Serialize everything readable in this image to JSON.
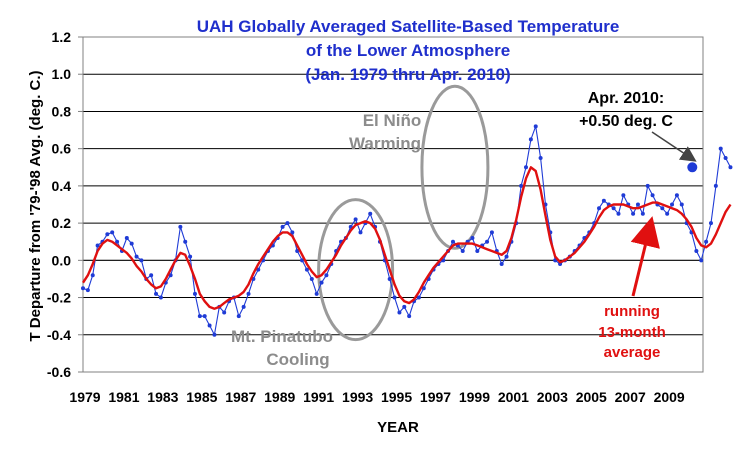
{
  "colors": {
    "title": "#1f2fcc",
    "monthly_series": "#1f3bd6",
    "running_mean": "#e01010",
    "annotation_gray": "#8c8c8c",
    "annotation_red": "#e01010",
    "background": "#ffffff",
    "grid": "#000000"
  },
  "chart_data": {
    "type": "line",
    "title": [
      "UAH Globally Averaged Satellite-Based Temperature",
      "of the Lower Atmosphere",
      "(Jan. 1979  thru Apr. 2010)"
    ],
    "xlabel": "YEAR",
    "ylabel": "T Departure from '79-'98 Avg. (deg. C.)",
    "xlim": [
      1979.0,
      2010.84
    ],
    "ylim": [
      -0.6,
      1.2
    ],
    "x_tick_labels": [
      "1979",
      "1981",
      "1983",
      "1985",
      "1987",
      "1989",
      "1991",
      "1993",
      "1995",
      "1997",
      "1999",
      "2001",
      "2003",
      "2005",
      "2007",
      "2009"
    ],
    "y_tick_labels": [
      "1.2",
      "1.0",
      "0.8",
      "0.6",
      "0.4",
      "0.2",
      "0.0",
      "-0.2",
      "-0.4",
      "-0.6"
    ],
    "y_ticks": [
      1.2,
      1.0,
      0.8,
      0.6,
      0.4,
      0.2,
      0.0,
      -0.2,
      -0.4,
      -0.6
    ],
    "horizontal_grid": true,
    "series": [
      {
        "style": "blue line with dot markers (monthly values, approximate)",
        "x_start": 1979.0,
        "x_step": 0.25,
        "values": [
          -0.15,
          -0.16,
          -0.08,
          0.08,
          0.1,
          0.14,
          0.15,
          0.1,
          0.05,
          0.12,
          0.09,
          0.02,
          0.0,
          -0.1,
          -0.08,
          -0.18,
          -0.2,
          -0.12,
          -0.08,
          0.0,
          0.18,
          0.1,
          0.02,
          -0.18,
          -0.3,
          -0.3,
          -0.35,
          -0.4,
          -0.25,
          -0.28,
          -0.22,
          -0.2,
          -0.3,
          -0.25,
          -0.18,
          -0.1,
          -0.05,
          0.0,
          0.05,
          0.08,
          0.12,
          0.18,
          0.2,
          0.15,
          0.05,
          0.0,
          -0.05,
          -0.1,
          -0.18,
          -0.12,
          -0.08,
          -0.02,
          0.05,
          0.1,
          0.12,
          0.18,
          0.22,
          0.15,
          0.2,
          0.25,
          0.18,
          0.1,
          0.0,
          -0.1,
          -0.2,
          -0.28,
          -0.25,
          -0.3,
          -0.22,
          -0.2,
          -0.15,
          -0.1,
          -0.05,
          -0.02,
          0.0,
          0.05,
          0.1,
          0.08,
          0.05,
          0.1,
          0.12,
          0.05,
          0.08,
          0.1,
          0.15,
          0.05,
          -0.02,
          0.02,
          0.1,
          0.2,
          0.4,
          0.5,
          0.65,
          0.72,
          0.55,
          0.3,
          0.15,
          0.0,
          -0.02,
          0.0,
          0.02,
          0.05,
          0.08,
          0.12,
          0.15,
          0.2,
          0.28,
          0.32,
          0.3,
          0.28,
          0.25,
          0.35,
          0.3,
          0.25,
          0.3,
          0.25,
          0.4,
          0.35,
          0.3,
          0.28,
          0.25,
          0.3,
          0.35,
          0.3,
          0.2,
          0.15,
          0.05,
          0.0,
          0.1,
          0.2,
          0.4,
          0.6,
          0.55,
          0.5
        ]
      },
      {
        "style": "red line (running 13-month average, approximate)",
        "x_start": 1979.0,
        "x_step": 0.25,
        "values": [
          -0.12,
          -0.08,
          -0.02,
          0.05,
          0.09,
          0.11,
          0.1,
          0.08,
          0.06,
          0.04,
          0.01,
          -0.03,
          -0.06,
          -0.1,
          -0.13,
          -0.15,
          -0.14,
          -0.1,
          -0.05,
          0.0,
          0.04,
          0.03,
          -0.03,
          -0.1,
          -0.18,
          -0.22,
          -0.25,
          -0.26,
          -0.25,
          -0.23,
          -0.21,
          -0.2,
          -0.19,
          -0.17,
          -0.13,
          -0.07,
          -0.02,
          0.02,
          0.06,
          0.1,
          0.13,
          0.15,
          0.15,
          0.13,
          0.08,
          0.03,
          -0.02,
          -0.06,
          -0.09,
          -0.08,
          -0.05,
          -0.01,
          0.03,
          0.08,
          0.12,
          0.16,
          0.19,
          0.2,
          0.21,
          0.2,
          0.17,
          0.11,
          0.03,
          -0.05,
          -0.13,
          -0.19,
          -0.22,
          -0.23,
          -0.21,
          -0.17,
          -0.12,
          -0.08,
          -0.04,
          -0.01,
          0.02,
          0.05,
          0.08,
          0.09,
          0.09,
          0.09,
          0.09,
          0.08,
          0.07,
          0.06,
          0.05,
          0.04,
          0.03,
          0.05,
          0.12,
          0.22,
          0.34,
          0.44,
          0.5,
          0.48,
          0.38,
          0.24,
          0.11,
          0.02,
          -0.01,
          0.0,
          0.02,
          0.04,
          0.07,
          0.1,
          0.14,
          0.18,
          0.23,
          0.27,
          0.29,
          0.3,
          0.3,
          0.3,
          0.29,
          0.28,
          0.28,
          0.29,
          0.3,
          0.31,
          0.31,
          0.3,
          0.29,
          0.28,
          0.27,
          0.25,
          0.22,
          0.18,
          0.12,
          0.08,
          0.07,
          0.09,
          0.14,
          0.2,
          0.26,
          0.3
        ]
      }
    ],
    "highlight_point": {
      "x": 2010.29,
      "y": 0.5
    },
    "annotations": {
      "el_nino": [
        "El Niño",
        "Warming"
      ],
      "pinatubo": [
        "Mt. Pinatubo",
        "Cooling"
      ],
      "last_point": [
        "Apr. 2010:",
        "+0.50 deg. C"
      ],
      "running_mean": [
        "running",
        "13-month",
        "average"
      ]
    }
  }
}
